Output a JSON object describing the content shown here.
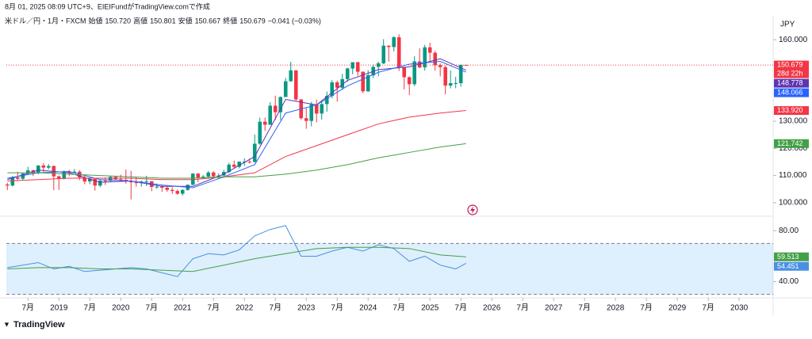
{
  "header": {
    "caption": "8月 01, 2025 08:09 UTC+9、EIEIFundがTradingView.comで作成",
    "symbol": "米ドル／円・1月・FXCM",
    "items": [
      {
        "label": "始値",
        "value": "150.720"
      },
      {
        "label": "高値",
        "value": "150.801"
      },
      {
        "label": "安値",
        "value": "150.667"
      },
      {
        "label": "終値",
        "value": "150.679"
      }
    ],
    "change": "−0.041 (−0.03%)"
  },
  "footer": {
    "brand": "TradingView"
  },
  "chart_data": [
    {
      "type": "candlestick",
      "currency": "JPY",
      "countdown": "28d 22h",
      "up_color": "#089981",
      "down_color": "#f23645",
      "xlim": [
        -0.2,
        148.6
      ],
      "ylim": [
        95.3,
        168.2
      ],
      "yticks": [
        {
          "value": 100,
          "label": "100.000"
        },
        {
          "value": 110,
          "label": "110.000"
        },
        {
          "value": 120,
          "label": "120.000"
        },
        {
          "value": 130,
          "label": "130.000"
        },
        {
          "value": 160,
          "label": "160.000"
        }
      ],
      "xticks": [
        {
          "value": 4,
          "label": "7月"
        },
        {
          "value": 10,
          "label": "2019"
        },
        {
          "value": 16,
          "label": "7月"
        },
        {
          "value": 22,
          "label": "2020"
        },
        {
          "value": 28,
          "label": "7月"
        },
        {
          "value": 34,
          "label": "2021"
        },
        {
          "value": 40,
          "label": "7月"
        },
        {
          "value": 46,
          "label": "2022"
        },
        {
          "value": 52,
          "label": "7月"
        },
        {
          "value": 58,
          "label": "2023"
        },
        {
          "value": 64,
          "label": "7月"
        },
        {
          "value": 70,
          "label": "2024"
        },
        {
          "value": 76,
          "label": "7月"
        },
        {
          "value": 82,
          "label": "2025"
        },
        {
          "value": 88,
          "label": "7月"
        },
        {
          "value": 94,
          "label": "2026"
        },
        {
          "value": 100,
          "label": "7月"
        },
        {
          "value": 106,
          "label": "2027"
        },
        {
          "value": 112,
          "label": "7月"
        },
        {
          "value": 118,
          "label": "2028"
        },
        {
          "value": 124,
          "label": "7月"
        },
        {
          "value": 130,
          "label": "2029"
        },
        {
          "value": 136,
          "label": "7月"
        },
        {
          "value": 142,
          "label": "2030"
        }
      ],
      "open": [
        106.7,
        106.3,
        109.3,
        108.8,
        110.7,
        111.9,
        111.0,
        113.7,
        112.9,
        113.5,
        109.7,
        108.9,
        111.4,
        110.9,
        111.4,
        109.3,
        107.8,
        108.7,
        106.3,
        108.1,
        108.0,
        109.5,
        108.6,
        108.4,
        107.9,
        107.5,
        107.2,
        107.8,
        107.9,
        105.8,
        105.9,
        105.5,
        104.7,
        104.3,
        103.3,
        104.7,
        106.6,
        110.7,
        109.3,
        109.6,
        111.1,
        109.7,
        110.0,
        111.3,
        114.0,
        113.2,
        115.1,
        115.1,
        115.0,
        121.7,
        129.8,
        128.7,
        135.7,
        133.3,
        138.9,
        144.7,
        148.7,
        138.0,
        131.1,
        130.1,
        136.2,
        132.8,
        136.3,
        139.3,
        144.3,
        142.3,
        145.5,
        149.4,
        151.7,
        148.2,
        141.0,
        146.9,
        150.0,
        151.3,
        157.8,
        157.3,
        160.9,
        150.0,
        146.2,
        143.6,
        152.0,
        149.8,
        157.2,
        155.2,
        150.6,
        149.9,
        143.1,
        144.0,
        144.0,
        150.72
      ],
      "high": [
        107.3,
        109.8,
        111.4,
        111.0,
        113.2,
        112.1,
        113.8,
        114.5,
        114.2,
        113.7,
        110.0,
        111.9,
        112.1,
        112.4,
        112.0,
        109.9,
        109.3,
        109.0,
        108.5,
        109.3,
        109.7,
        109.7,
        110.3,
        112.2,
        111.7,
        109.4,
        108.1,
        109.9,
        107.9,
        107.0,
        106.6,
        106.1,
        105.7,
        104.8,
        104.9,
        106.7,
        110.9,
        110.9,
        110.2,
        111.7,
        111.6,
        110.8,
        112.1,
        114.7,
        115.5,
        115.2,
        116.3,
        116.2,
        125.1,
        131.3,
        131.3,
        137.0,
        139.4,
        139.1,
        145.9,
        151.9,
        148.8,
        138.2,
        134.8,
        137.1,
        137.9,
        137.6,
        140.9,
        145.1,
        144.9,
        147.4,
        149.7,
        151.7,
        151.9,
        148.3,
        148.8,
        150.9,
        151.9,
        160.2,
        157.7,
        161.3,
        162.0,
        150.0,
        146.5,
        153.9,
        156.8,
        158.1,
        158.9,
        155.9,
        151.3,
        150.5,
        148.7,
        146.3,
        150.9,
        150.801
      ],
      "low": [
        104.6,
        106.0,
        108.1,
        108.1,
        110.3,
        109.8,
        110.4,
        111.4,
        112.3,
        104.6,
        104.7,
        108.5,
        109.7,
        110.8,
        108.3,
        106.8,
        106.8,
        104.4,
        105.7,
        106.5,
        107.9,
        108.4,
        107.7,
        107.0,
        101.2,
        105.9,
        105.9,
        106.1,
        104.2,
        105.1,
        104.0,
        104.0,
        103.2,
        102.9,
        102.6,
        104.4,
        106.4,
        107.5,
        108.6,
        109.2,
        109.1,
        108.7,
        109.1,
        110.8,
        112.5,
        112.6,
        113.5,
        114.4,
        114.7,
        121.3,
        126.4,
        128.6,
        130.4,
        130.4,
        138.9,
        144.5,
        137.5,
        130.6,
        127.2,
        128.1,
        129.6,
        130.6,
        133.5,
        138.4,
        137.2,
        141.5,
        144.4,
        147.3,
        146.7,
        140.3,
        140.8,
        145.9,
        146.5,
        151.0,
        151.9,
        155.7,
        148.5,
        141.7,
        139.6,
        142.9,
        149.5,
        148.6,
        151.8,
        148.6,
        146.5,
        139.9,
        142.1,
        142.1,
        142.7,
        150.667
      ],
      "close": [
        106.3,
        109.3,
        108.8,
        110.7,
        111.9,
        111.0,
        113.7,
        112.9,
        113.5,
        109.7,
        108.9,
        111.4,
        110.9,
        111.4,
        109.3,
        107.8,
        108.7,
        106.3,
        108.1,
        108.0,
        109.5,
        108.6,
        108.4,
        107.9,
        107.5,
        107.2,
        107.8,
        107.9,
        105.8,
        105.9,
        105.5,
        104.7,
        104.3,
        103.3,
        104.7,
        106.6,
        110.7,
        109.3,
        109.6,
        111.1,
        109.7,
        110.0,
        111.3,
        114.0,
        113.2,
        115.1,
        115.1,
        115.0,
        121.7,
        129.8,
        128.7,
        135.7,
        133.3,
        138.9,
        144.7,
        148.7,
        138.0,
        131.1,
        130.1,
        136.2,
        132.8,
        136.3,
        139.3,
        144.3,
        142.3,
        145.5,
        149.4,
        151.7,
        148.2,
        141.0,
        146.9,
        150.0,
        151.3,
        157.8,
        157.3,
        160.9,
        150.0,
        146.2,
        143.6,
        152.0,
        149.8,
        157.2,
        155.2,
        150.6,
        149.9,
        143.1,
        144.0,
        144.0,
        150.72,
        150.679
      ],
      "close_label": "150.679",
      "series": [
        {
          "color": "#5e35b1",
          "x": [
            0,
            6,
            12,
            18,
            24,
            30,
            36,
            42,
            48,
            54,
            60,
            66,
            72,
            78,
            84,
            89
          ],
          "values": [
            108.5,
            112,
            111,
            107.5,
            108,
            106,
            106,
            110.5,
            117,
            138,
            136,
            145,
            149,
            150,
            153,
            148.778
          ],
          "last_label": "148.778"
        },
        {
          "color": "#2962ff",
          "x": [
            0,
            6,
            12,
            18,
            24,
            30,
            36,
            42,
            48,
            54,
            60,
            66,
            72,
            78,
            84,
            89
          ],
          "values": [
            109,
            111,
            111.5,
            108.5,
            108,
            106.5,
            105.5,
            109.5,
            114,
            133,
            136,
            143,
            148,
            151,
            152,
            148.066
          ],
          "last_label": "148.066"
        },
        {
          "color": "#f23645",
          "x": [
            0,
            6,
            12,
            18,
            24,
            30,
            36,
            42,
            48,
            54,
            60,
            66,
            72,
            78,
            84,
            89
          ],
          "values": [
            108,
            108.5,
            109,
            109,
            109,
            108.5,
            108.5,
            109.5,
            111,
            117,
            121,
            125,
            129,
            131.5,
            133,
            133.92
          ],
          "last_label": "133.920"
        },
        {
          "color": "#43a047",
          "x": [
            0,
            6,
            12,
            18,
            24,
            30,
            36,
            42,
            48,
            54,
            60,
            66,
            72,
            78,
            84,
            89
          ],
          "values": [
            111,
            111,
            110.5,
            110,
            109.5,
            109,
            109,
            109.5,
            109.5,
            110.5,
            112,
            114,
            116.5,
            118.5,
            120.5,
            121.742
          ],
          "last_label": "121.742"
        }
      ]
    },
    {
      "type": "line",
      "xlim": [
        -0.2,
        148.6
      ],
      "ylim": [
        29.8,
        91.4
      ],
      "yticks": [
        {
          "value": 40,
          "label": "40.00"
        },
        {
          "value": 80,
          "label": "80.00"
        }
      ],
      "band": [
        30,
        70
      ],
      "band_color": "#2196f3",
      "series": [
        {
          "color": "#4a90e2",
          "x": [
            0,
            3,
            6,
            9,
            12,
            15,
            18,
            21,
            24,
            27,
            30,
            33,
            36,
            39,
            42,
            45,
            48,
            51,
            54,
            57,
            60,
            63,
            66,
            69,
            72,
            75,
            78,
            81,
            84,
            87,
            89
          ],
          "values": [
            51,
            53,
            55,
            50,
            52,
            48,
            49,
            50,
            51,
            50,
            47,
            44,
            58,
            62,
            61,
            65,
            76,
            81,
            84,
            60,
            60,
            64,
            67,
            64,
            69,
            66,
            56,
            60,
            53,
            50,
            54.451
          ],
          "last_label": "54.451"
        },
        {
          "color": "#43a047",
          "x": [
            0,
            6,
            12,
            18,
            24,
            30,
            36,
            42,
            48,
            54,
            60,
            66,
            72,
            78,
            84,
            89
          ],
          "values": [
            50,
            51,
            51,
            50,
            50,
            49,
            48,
            53,
            58,
            62,
            66,
            67,
            67,
            66,
            61,
            59.513
          ],
          "last_label": "59.513"
        }
      ]
    }
  ]
}
